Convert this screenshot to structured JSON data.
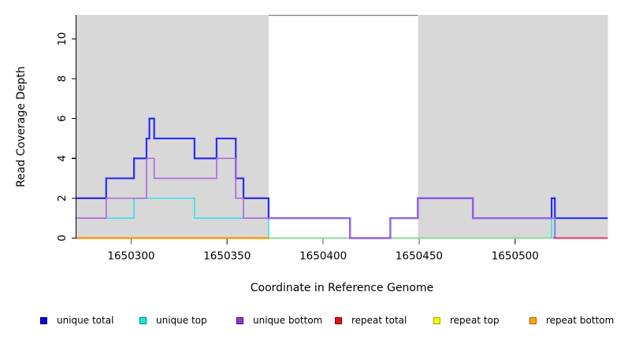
{
  "figure": {
    "xlabel": "Coordinate in Reference Genome",
    "ylabel": "Read Coverage Depth"
  },
  "legend": {
    "items": [
      {
        "label": "unique total",
        "fill": "#0000f5",
        "border": "#000060"
      },
      {
        "label": "unique top",
        "fill": "#00eded",
        "border": "#007d7d"
      },
      {
        "label": "unique bottom",
        "fill": "#9c2fd0",
        "border": "#4f1070"
      },
      {
        "label": "repeat total",
        "fill": "#ee1111",
        "border": "#700000"
      },
      {
        "label": "repeat top",
        "fill": "#fdfd00",
        "border": "#a0a000"
      },
      {
        "label": "repeat bottom",
        "fill": "#ffa510",
        "border": "#b06000"
      }
    ]
  },
  "chart_data": {
    "type": "line",
    "subtype": "step",
    "title": "",
    "xlabel": "Coordinate in Reference Genome",
    "ylabel": "Read Coverage Depth",
    "xlim": [
      1650271.5,
      1650548.3
    ],
    "ylim": [
      0,
      11.2
    ],
    "xticks": [
      1650300,
      1650350,
      1650400,
      1650450,
      1650500
    ],
    "yticks": [
      0,
      2,
      4,
      6,
      8,
      10
    ],
    "grid": false,
    "legend_position": "bottom",
    "background_color": "#ffffff",
    "shaded_regions": [
      {
        "name": "covered-region-left",
        "x0": 1650271.5,
        "x1": 1650371.6,
        "color": "#d8d8d8"
      },
      {
        "name": "covered-region-right",
        "x0": 1650449.3,
        "x1": 1650548.3,
        "color": "#d8d8d8"
      }
    ],
    "series": [
      {
        "name": "unique top",
        "color": "#35e2ea",
        "line_width": 1.6,
        "steps": [
          [
            1650271.5,
            1
          ],
          [
            1650301.5,
            2
          ],
          [
            1650333,
            1
          ],
          [
            1650371.6,
            0
          ],
          [
            1650519,
            1
          ],
          [
            1650520.5,
            0
          ],
          [
            1650548.3,
            0
          ]
        ]
      },
      {
        "name": "repeat top",
        "note": "coverage 0 across plot; overlapping zero lines render pale green here",
        "color": "#8fd292",
        "line_width": 1.8,
        "steps": [
          [
            1650371.6,
            0
          ],
          [
            1650520,
            0
          ]
        ]
      },
      {
        "name": "unique total",
        "color": "#2b2bf2",
        "line_width": 2.2,
        "steps": [
          [
            1650271.5,
            2
          ],
          [
            1650287,
            3
          ],
          [
            1650301.5,
            4
          ],
          [
            1650308,
            5
          ],
          [
            1650309.5,
            6
          ],
          [
            1650312,
            5
          ],
          [
            1650333,
            4
          ],
          [
            1650344.5,
            5
          ],
          [
            1650354.5,
            3
          ],
          [
            1650358.5,
            2
          ],
          [
            1650371.6,
            1
          ],
          [
            1650414,
            0
          ],
          [
            1650435,
            1
          ],
          [
            1650449.3,
            2
          ],
          [
            1650478,
            1
          ],
          [
            1650519,
            2
          ],
          [
            1650520.7,
            1
          ],
          [
            1650548.3,
            1
          ]
        ]
      },
      {
        "name": "unique bottom",
        "color": "#a965e3",
        "line_width": 1.6,
        "steps": [
          [
            1650271.5,
            1
          ],
          [
            1650287,
            2
          ],
          [
            1650308,
            4
          ],
          [
            1650312,
            3
          ],
          [
            1650344.5,
            4
          ],
          [
            1650354.5,
            2
          ],
          [
            1650358.5,
            1
          ],
          [
            1650414,
            0
          ],
          [
            1650435,
            1
          ],
          [
            1650449.3,
            2
          ],
          [
            1650478,
            1
          ],
          [
            1650520.8,
            0
          ],
          [
            1650548.3,
            0
          ]
        ]
      },
      {
        "name": "repeat total",
        "color": "#e0356b",
        "line_width": 2,
        "steps": [
          [
            1650520,
            0
          ],
          [
            1650548.3,
            0
          ]
        ]
      },
      {
        "name": "repeat bottom",
        "color": "#ff9100",
        "line_width": 2.2,
        "steps": [
          [
            1650271.5,
            0
          ],
          [
            1650371.8,
            0
          ]
        ]
      }
    ]
  }
}
